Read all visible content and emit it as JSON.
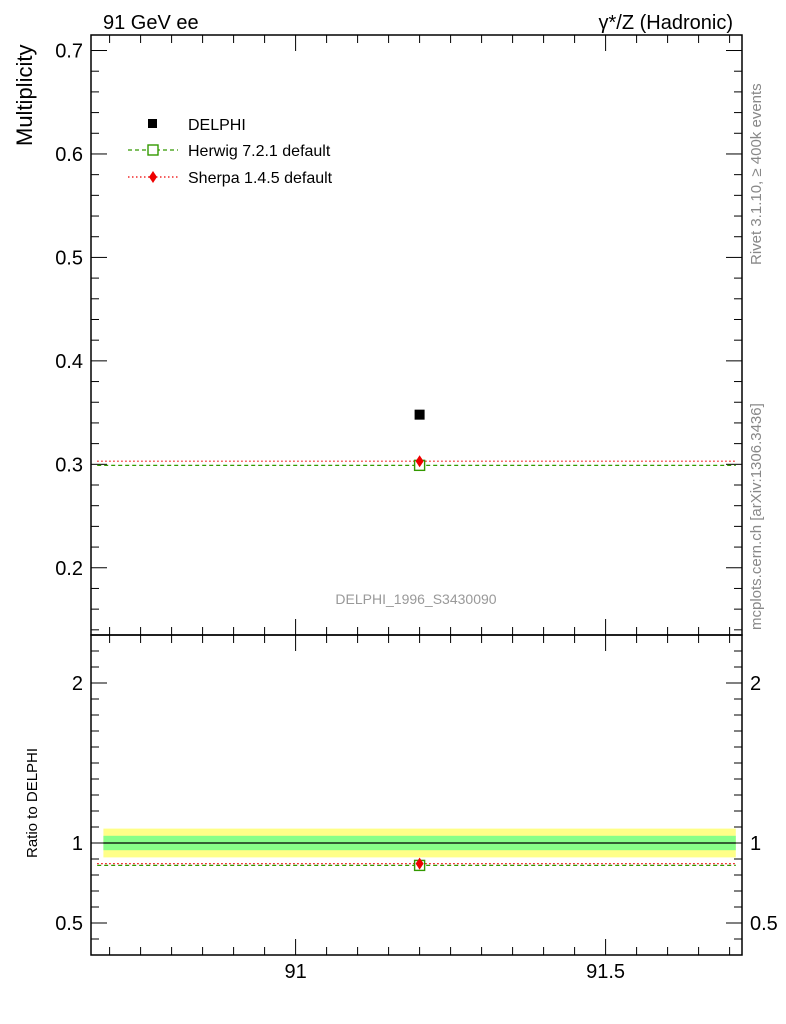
{
  "header": {
    "left_title": "91 GeV ee",
    "right_title": "γ*/Z (Hadronic)"
  },
  "side_labels": {
    "rivet": "Rivet 3.1.10, ≥ 400k events",
    "mcplots": "mcplots.cern.ch [arXiv:1306.3436]"
  },
  "watermark": "DELPHI_1996_S3430090",
  "colors": {
    "data": "#000000",
    "herwig": "#339900",
    "sherpa": "#ee0000",
    "band_inner": "#88ff88",
    "band_outer": "#ffff88"
  },
  "chart_data": [
    {
      "type": "scatter",
      "panel": "main",
      "ylabel": "Multiplicity",
      "xlim": [
        90.67,
        91.72
      ],
      "ylim": [
        0.135,
        0.715
      ],
      "y_ticks": [
        0.2,
        0.3,
        0.4,
        0.5,
        0.6,
        0.7
      ],
      "y_tick_labels": [
        "0.2",
        "0.3",
        "0.4",
        "0.5",
        "0.6",
        "0.7"
      ],
      "legend": {
        "position": "top-left",
        "entries": [
          "DELPHI",
          "Herwig 7.2.1 default",
          "Sherpa 1.4.5 default"
        ]
      },
      "series": [
        {
          "name": "DELPHI",
          "style": "black-square",
          "x": [
            91.2
          ],
          "y": [
            0.348
          ]
        },
        {
          "name": "Herwig 7.2.1 default",
          "style": "green-dashed-open-square",
          "x": [
            91.2
          ],
          "y": [
            0.299
          ],
          "x_range": [
            90.68,
            91.71
          ]
        },
        {
          "name": "Sherpa 1.4.5 default",
          "style": "red-dotted-diamond",
          "x": [
            91.2
          ],
          "y": [
            0.303
          ],
          "x_range": [
            90.68,
            91.71
          ]
        }
      ]
    },
    {
      "type": "line",
      "panel": "ratio",
      "ylabel": "Ratio to DELPHI",
      "xlabel": "",
      "xlim": [
        90.67,
        91.72
      ],
      "ylim": [
        0.3,
        2.3
      ],
      "y_ticks": [
        0.5,
        1,
        2
      ],
      "y_tick_labels": [
        "0.5",
        "1",
        "2"
      ],
      "x_ticks": [
        91,
        91.5
      ],
      "x_tick_labels": [
        "91",
        "91.5"
      ],
      "band_inner": [
        0.955,
        1.045
      ],
      "band_outer": [
        0.91,
        1.09
      ],
      "band_x_range": [
        90.69,
        91.71
      ],
      "series": [
        {
          "name": "DELPHI",
          "x": [
            91.2
          ],
          "y": [
            1.0
          ]
        },
        {
          "name": "Herwig 7.2.1 default",
          "x": [
            91.2
          ],
          "y": [
            0.86
          ]
        },
        {
          "name": "Sherpa 1.4.5 default",
          "x": [
            91.2
          ],
          "y": [
            0.871
          ]
        }
      ]
    }
  ]
}
